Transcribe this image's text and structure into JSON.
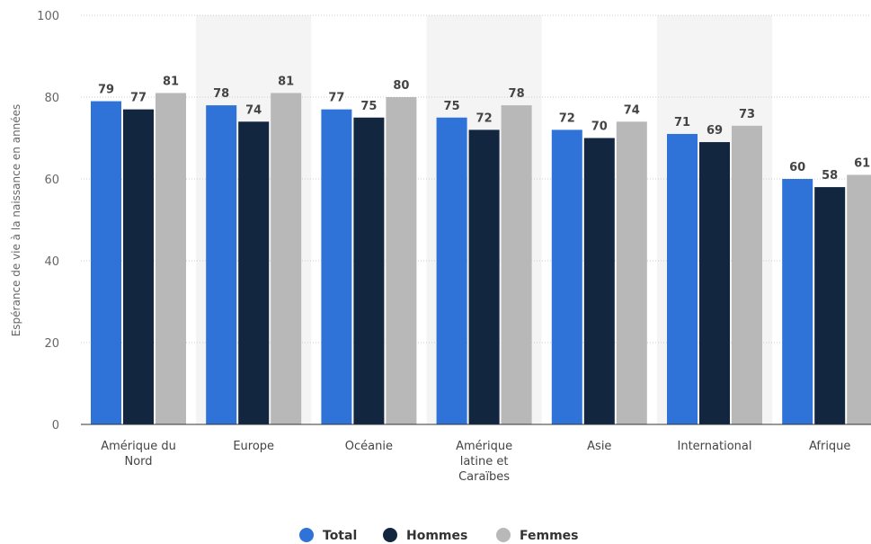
{
  "chart_data": {
    "type": "bar",
    "title": "",
    "xlabel": "",
    "ylabel": "Espérance de vie à la naissance en années",
    "ylim": [
      0,
      100
    ],
    "yticks": [
      0,
      20,
      40,
      60,
      80,
      100
    ],
    "grid": true,
    "legend_position": "bottom",
    "categories": [
      [
        "Amérique du",
        "Nord"
      ],
      [
        "Europe"
      ],
      [
        "Océanie"
      ],
      [
        "Amérique",
        "latine et",
        "Caraïbes"
      ],
      [
        "Asie"
      ],
      [
        "International"
      ],
      [
        "Afrique"
      ]
    ],
    "series": [
      {
        "name": "Total",
        "color": "#2f73d8",
        "values": [
          79,
          78,
          77,
          75,
          72,
          71,
          60
        ]
      },
      {
        "name": "Hommes",
        "color": "#12263f",
        "values": [
          77,
          74,
          75,
          72,
          70,
          69,
          58
        ]
      },
      {
        "name": "Femmes",
        "color": "#b8b8b8",
        "values": [
          81,
          81,
          80,
          78,
          74,
          73,
          61
        ]
      }
    ],
    "band_color": "#f4f4f4"
  }
}
